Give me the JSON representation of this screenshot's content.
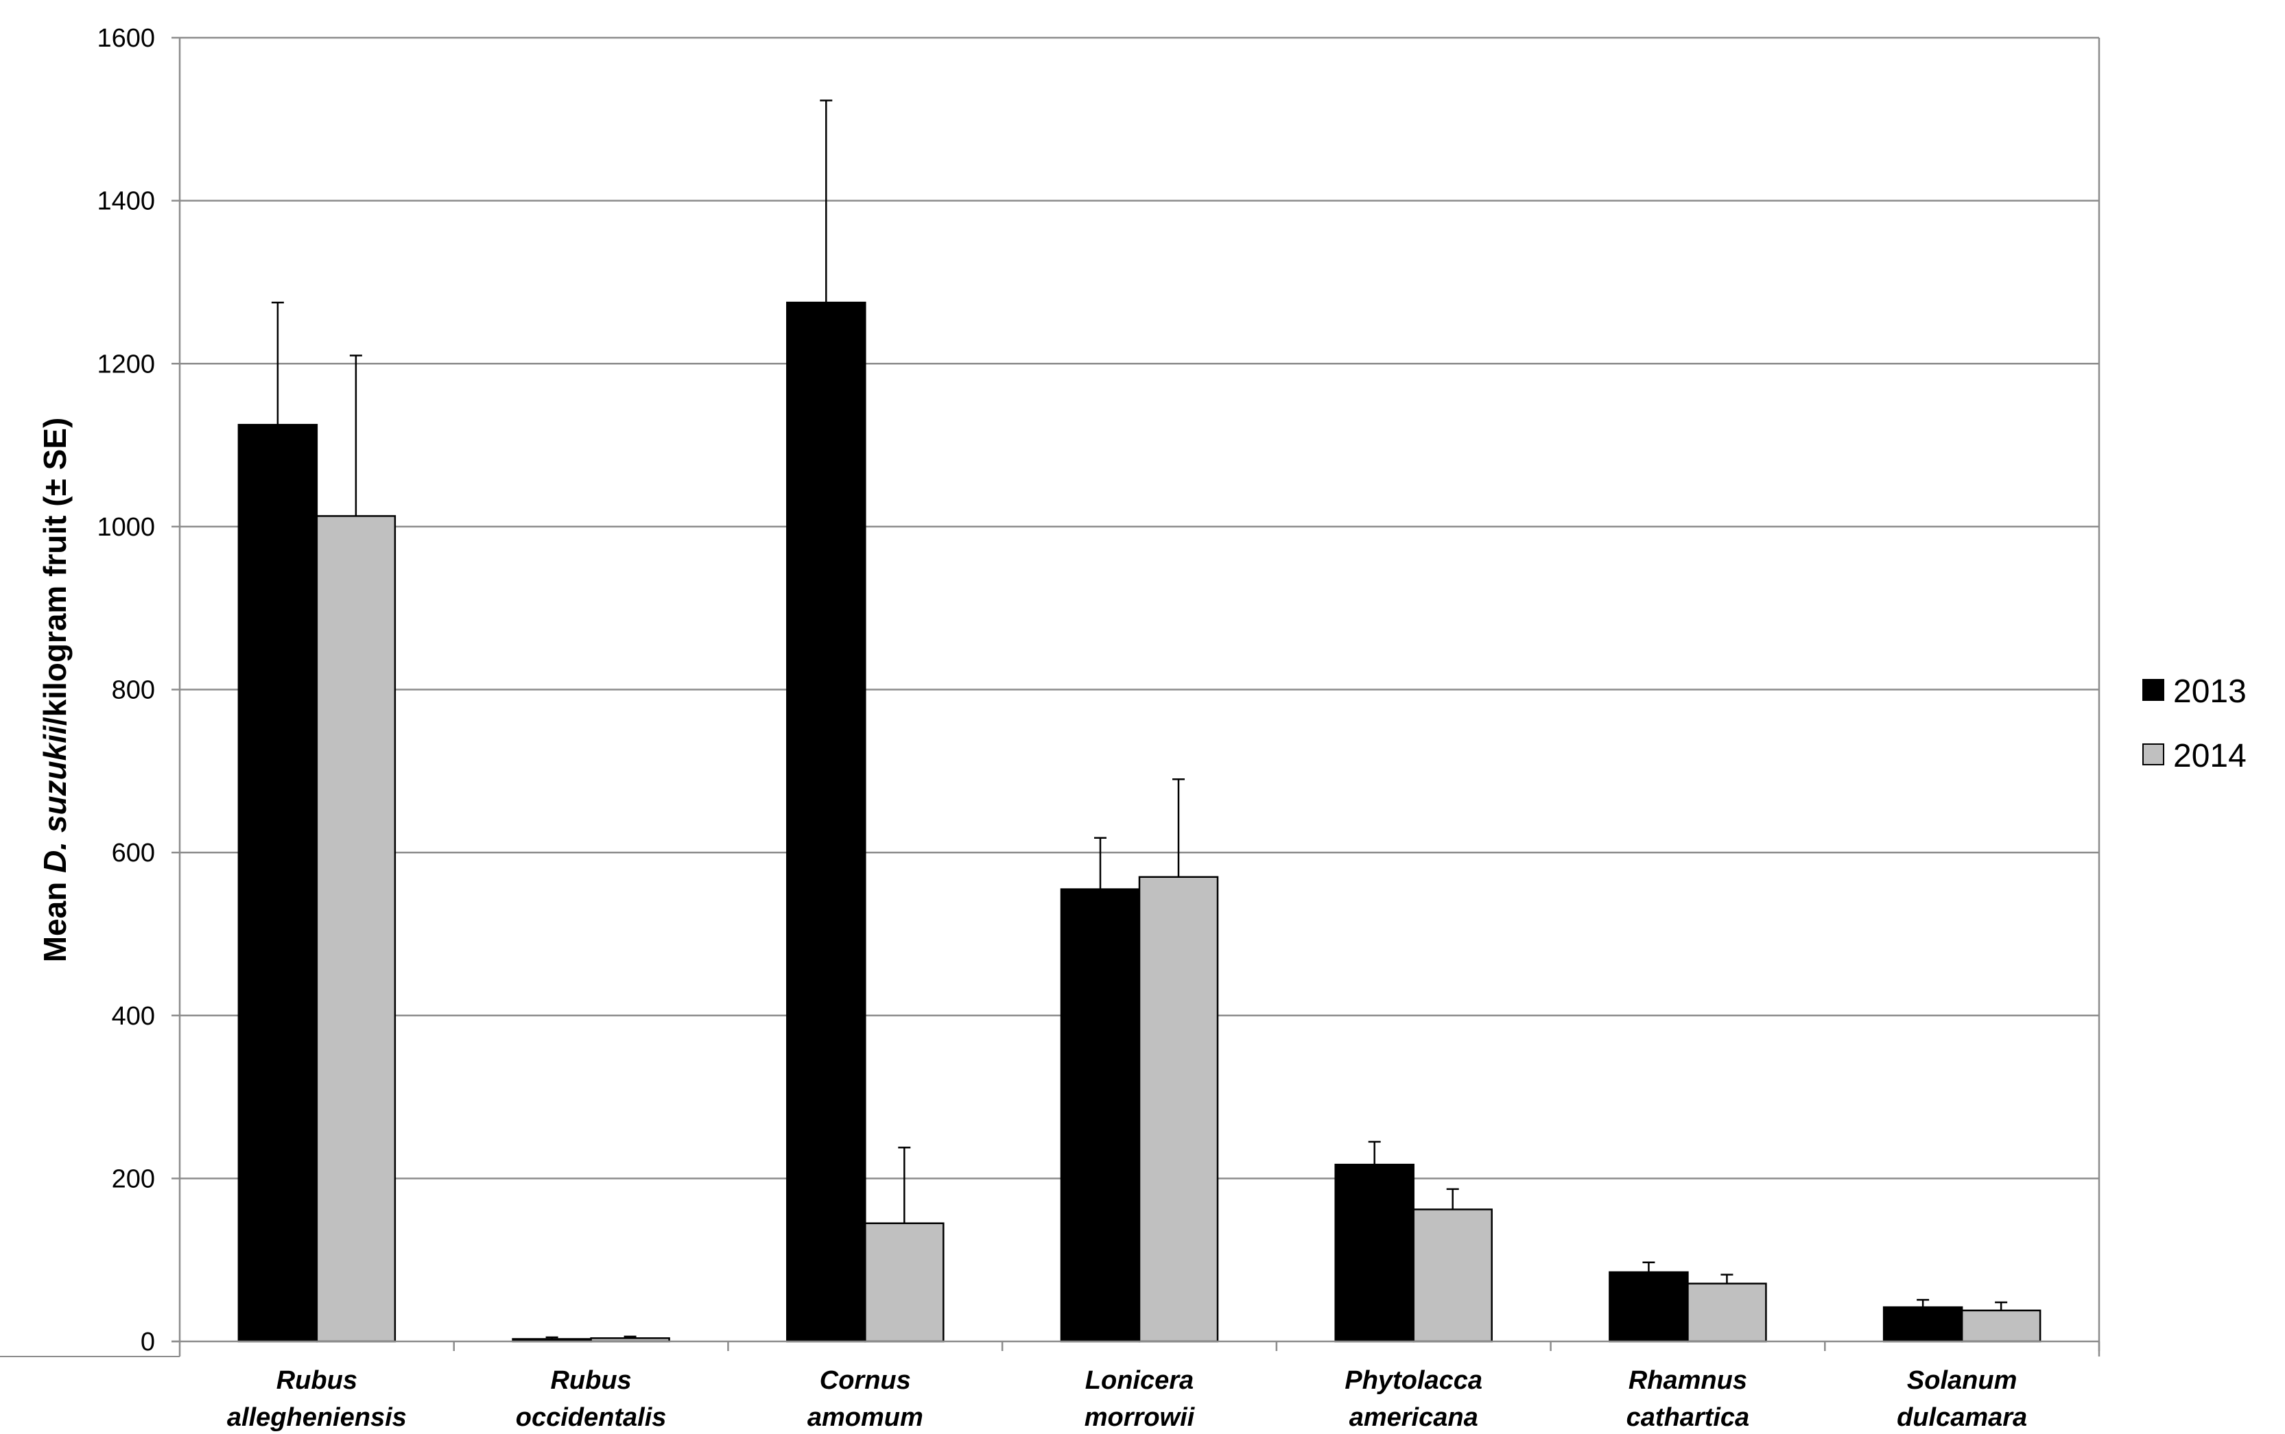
{
  "chart_data": {
    "type": "bar",
    "ylabel_parts": [
      "Mean ",
      "D. suzukii",
      "/kilogram fruit (± SE)"
    ],
    "ylim": [
      0,
      1600
    ],
    "yticks": [
      0,
      200,
      400,
      600,
      800,
      1000,
      1200,
      1400,
      1600
    ],
    "grid": true,
    "legend_position": "right",
    "categories": [
      [
        "Rubus",
        "allegheniensis"
      ],
      [
        "Rubus",
        "occidentalis"
      ],
      [
        "Cornus",
        "amomum"
      ],
      [
        "Lonicera",
        "morrowii"
      ],
      [
        "Phytolacca",
        "americana"
      ],
      [
        "Rhamnus",
        "cathartica"
      ],
      [
        "Solanum",
        "dulcamara"
      ]
    ],
    "series": [
      {
        "name": "2013",
        "color": "#000000",
        "values": [
          1125,
          3,
          1275,
          555,
          217,
          85,
          42
        ],
        "errors": [
          150,
          2,
          248,
          63,
          28,
          12,
          9
        ]
      },
      {
        "name": "2014",
        "color": "#c0c0c0",
        "values": [
          1013,
          4,
          145,
          570,
          162,
          71,
          38
        ],
        "errors": [
          197,
          2,
          93,
          120,
          25,
          11,
          10
        ]
      }
    ]
  }
}
